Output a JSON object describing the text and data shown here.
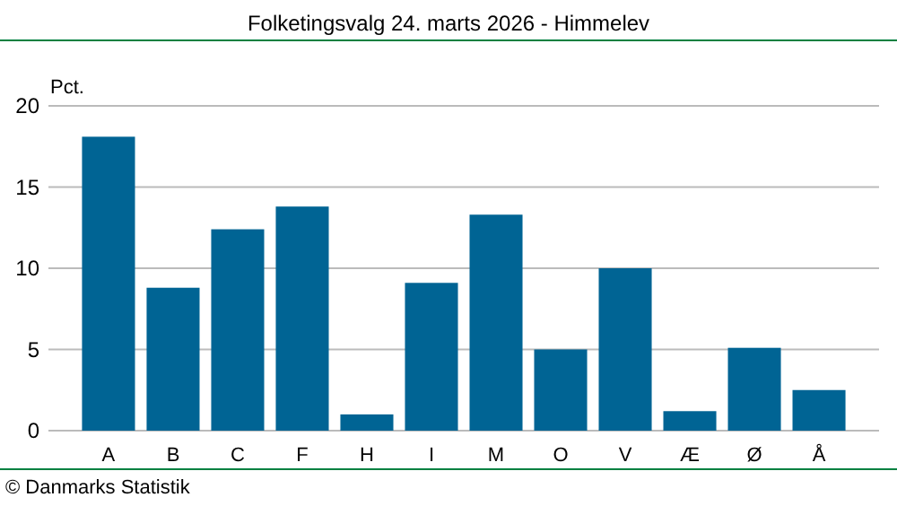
{
  "chart_data": {
    "type": "bar",
    "title": "Folketingsvalg 24. marts 2026 - Himmelev",
    "ylabel": "Pct.",
    "categories": [
      "A",
      "B",
      "C",
      "F",
      "H",
      "I",
      "M",
      "O",
      "V",
      "Æ",
      "Ø",
      "Å"
    ],
    "values": [
      18.1,
      8.8,
      12.4,
      13.8,
      1.0,
      9.1,
      13.3,
      5.0,
      10.0,
      1.2,
      5.1,
      2.5
    ],
    "color": "#006494",
    "ylim": [
      0,
      20
    ],
    "yticks": [
      0,
      5,
      10,
      15,
      20
    ],
    "grid": "y",
    "annotations": [
      "© Danmarks Statistik"
    ]
  }
}
